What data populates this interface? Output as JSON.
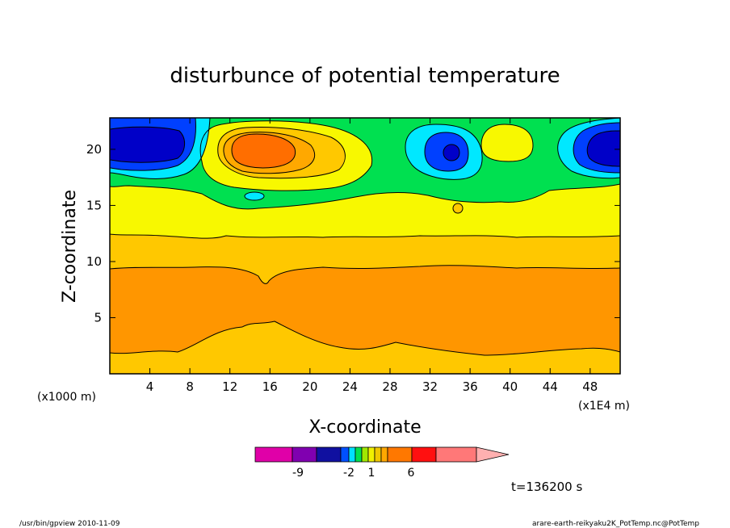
{
  "chart_data": {
    "type": "heatmap",
    "title": "disturbunce of potential temperature",
    "xlabel": "X-coordinate",
    "ylabel": "Z-coordinate",
    "x_unit": "(x1E4 m)",
    "y_unit": "(x1000 m)",
    "xlim": [
      0,
      51
    ],
    "ylim": [
      0,
      22.8
    ],
    "x_ticks": [
      4,
      8,
      12,
      16,
      20,
      24,
      28,
      32,
      36,
      40,
      44,
      48
    ],
    "y_ticks": [
      5,
      10,
      15,
      20
    ],
    "x_tick_labels": [
      "4",
      "8",
      "12",
      "16",
      "20",
      "24",
      "28",
      "32",
      "36",
      "40",
      "44",
      "48"
    ],
    "y_tick_labels": [
      "5",
      "10",
      "15",
      "20"
    ],
    "colorbar": {
      "labels": [
        "-9",
        "-2",
        "1",
        "6"
      ],
      "colors": [
        "#e000a8",
        "#8000b0",
        "#1010a0",
        "#0050ff",
        "#00e0ff",
        "#00e050",
        "#a0e800",
        "#f0f000",
        "#f0c800",
        "#ffa800",
        "#ff7800",
        "#ff1010",
        "#ff7878",
        "#ffb0b0"
      ]
    },
    "time_label": "t=136200 s",
    "colors": {
      "orange": "#ff9600",
      "light_orange": "#ffc800",
      "yellow": "#f8f800",
      "green": "#00e050",
      "cyan": "#00e8ff",
      "blue": "#0040ff",
      "dark_blue": "#0000c8",
      "deep_orange": "#ff6e00"
    }
  },
  "footer": {
    "left": "/usr/bin/gpview   2010-11-09",
    "right": "arare-earth-reikyaku2K_PotTemp.nc@PotTemp"
  }
}
